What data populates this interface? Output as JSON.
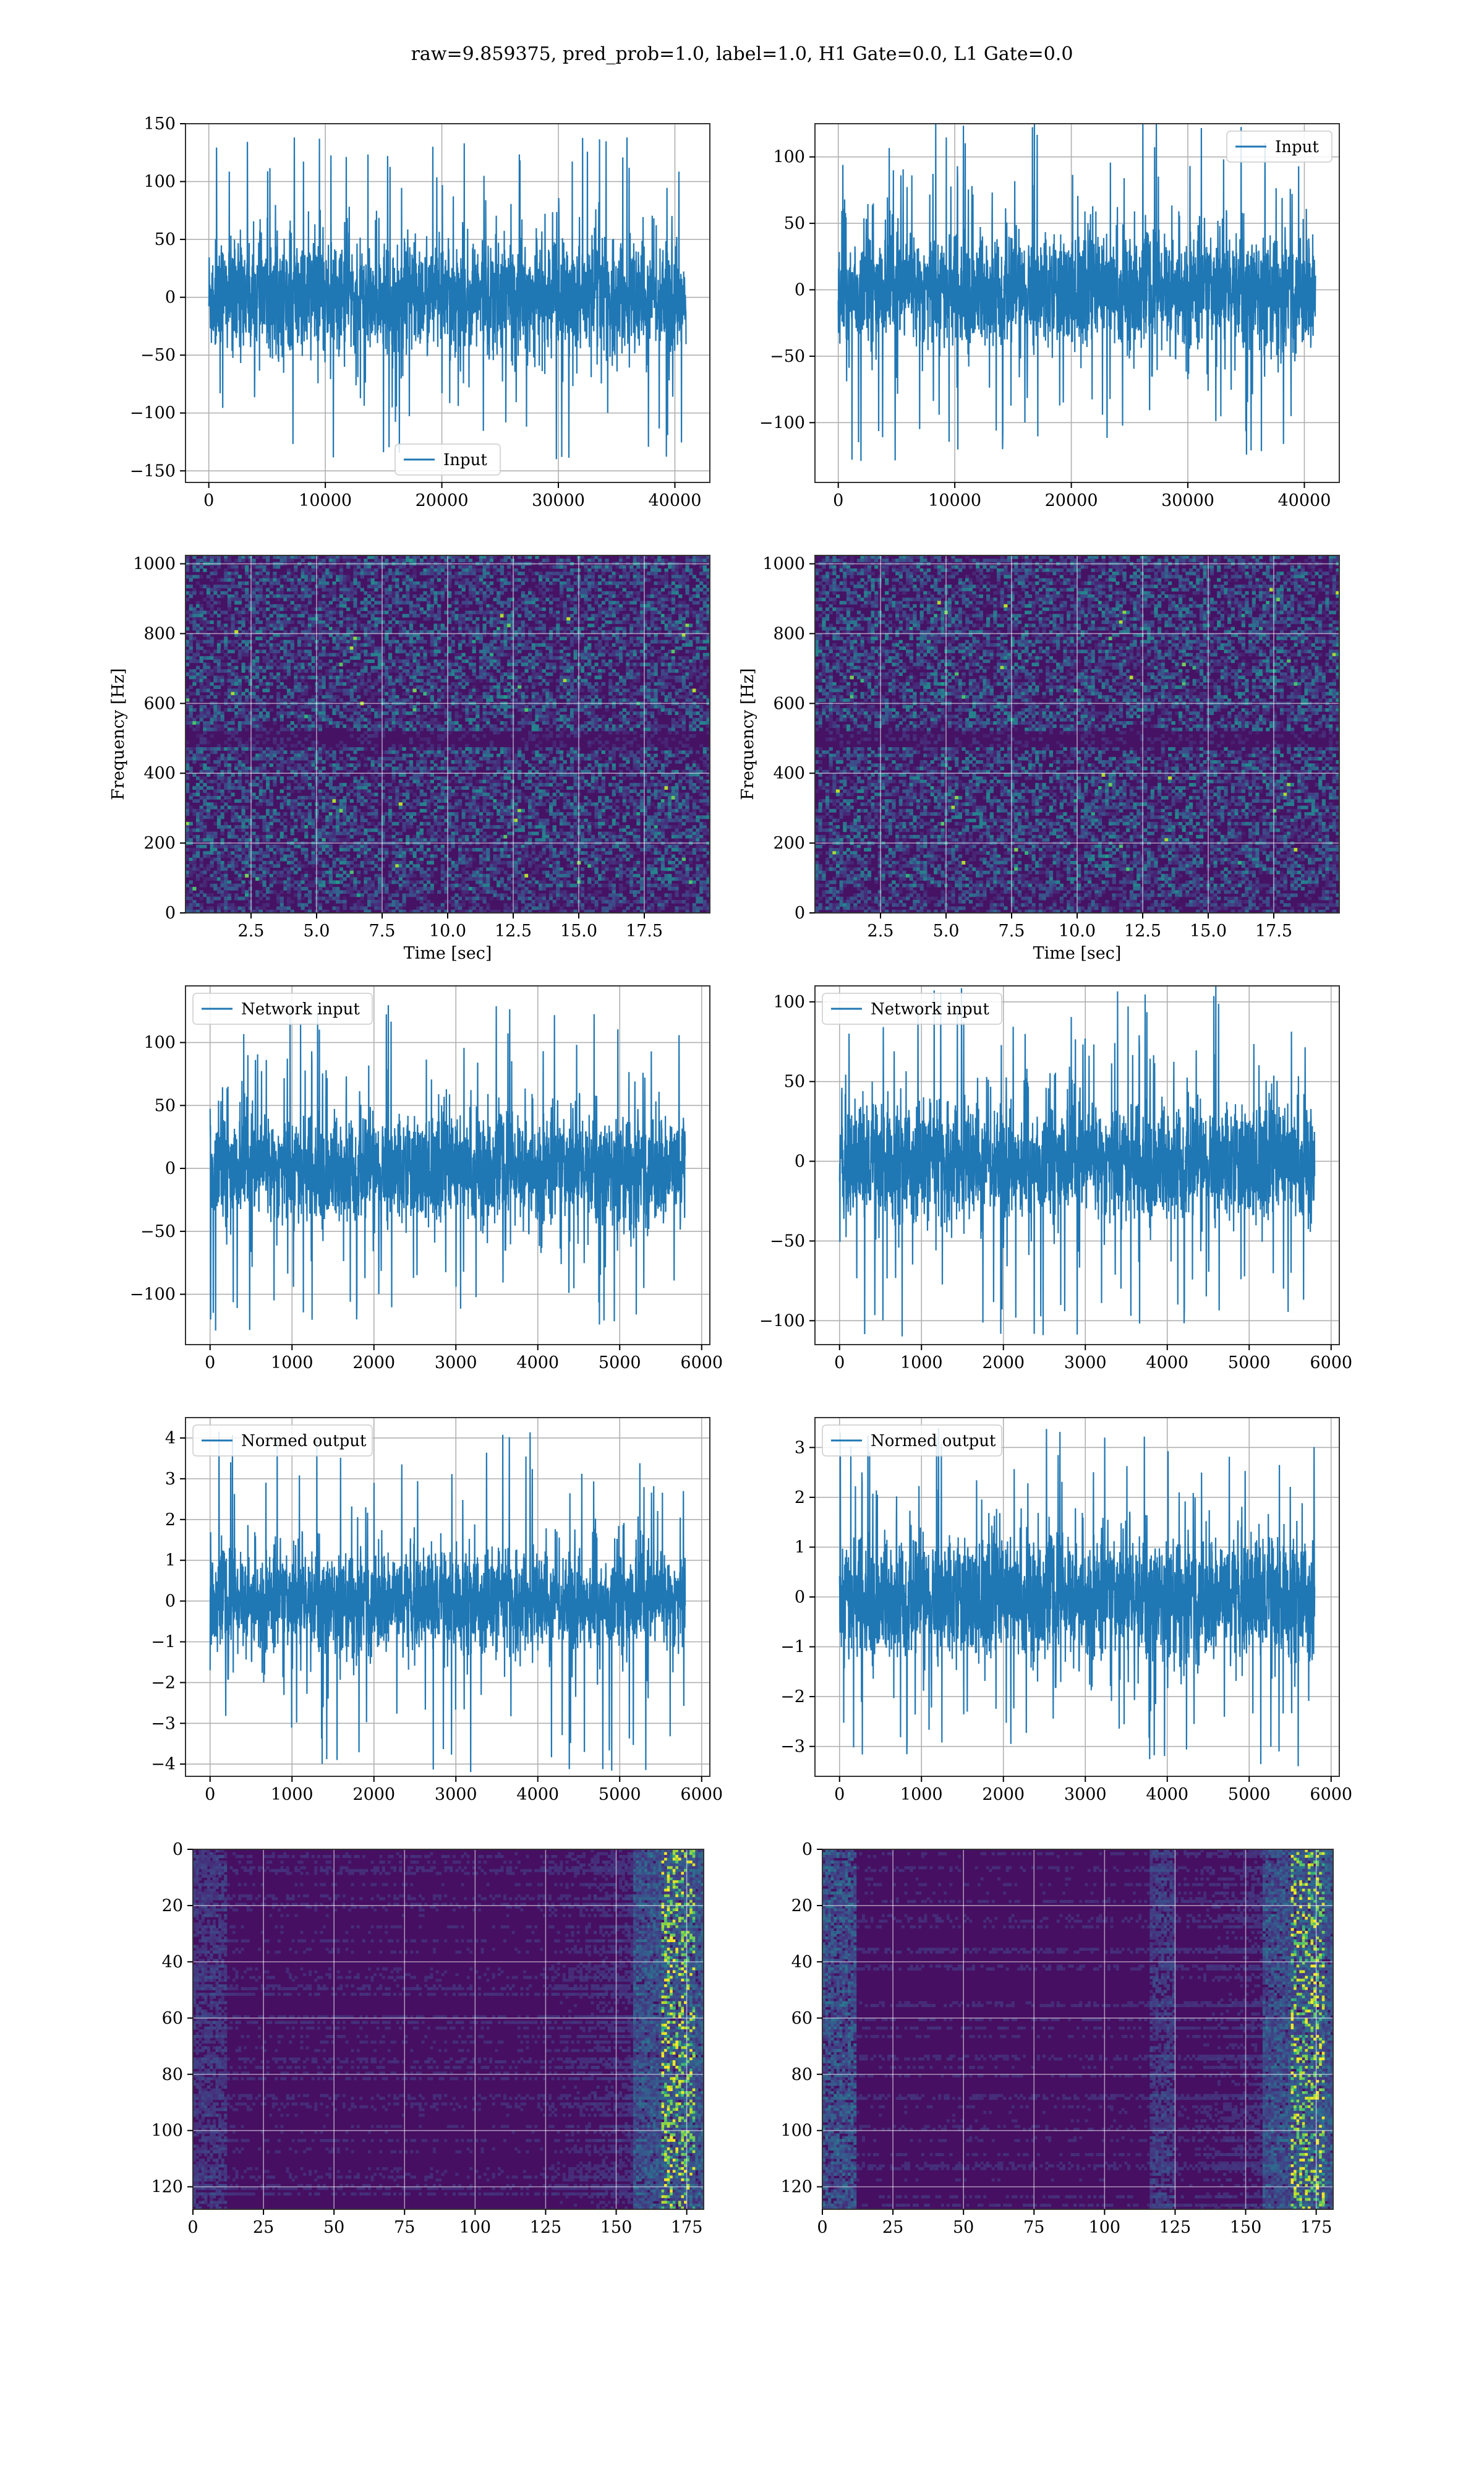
{
  "figure": {
    "suptitle": "raw=9.859375, pred_prob=1.0, label=1.0, H1 Gate=0.0, L1 Gate=0.0"
  },
  "chart_data": [
    {
      "id": "input-h1",
      "type": "line",
      "legend_position": "lower-center",
      "series": [
        {
          "name": "Input",
          "color": "#1f77b4",
          "n": 40960,
          "amplitude_typical": 40,
          "amplitude_peak": 140
        }
      ],
      "xlim": [
        -2000,
        43000
      ],
      "ylim": [
        -160,
        150
      ],
      "xticks": [
        0,
        10000,
        20000,
        30000,
        40000
      ],
      "yticks": [
        -150,
        -100,
        -50,
        0,
        50,
        100,
        150
      ],
      "xticklabels": [
        "0",
        "10000",
        "20000",
        "30000",
        "40000"
      ],
      "yticklabels": [
        "−150",
        "−100",
        "−50",
        "0",
        "50",
        "100",
        "150"
      ],
      "xlabel": "",
      "ylabel": "",
      "grid": true
    },
    {
      "id": "input-l1",
      "type": "line",
      "legend_position": "upper-right",
      "series": [
        {
          "name": "Input",
          "color": "#1f77b4",
          "n": 40960,
          "amplitude_typical": 35,
          "amplitude_peak": 130
        }
      ],
      "xlim": [
        -2000,
        43000
      ],
      "ylim": [
        -145,
        125
      ],
      "xticks": [
        0,
        10000,
        20000,
        30000,
        40000
      ],
      "yticks": [
        -100,
        -50,
        0,
        50,
        100
      ],
      "xticklabels": [
        "0",
        "10000",
        "20000",
        "30000",
        "40000"
      ],
      "yticklabels": [
        "−100",
        "−50",
        "0",
        "50",
        "100"
      ],
      "xlabel": "",
      "ylabel": "",
      "grid": true
    },
    {
      "id": "spectrogram-h1",
      "type": "heatmap",
      "colormap": "viridis",
      "xlim": [
        0,
        20
      ],
      "ylim": [
        0,
        1024
      ],
      "xticks": [
        2.5,
        5.0,
        7.5,
        10.0,
        12.5,
        15.0,
        17.5
      ],
      "yticks": [
        0,
        200,
        400,
        600,
        800,
        1000
      ],
      "xticklabels": [
        "2.5",
        "5.0",
        "7.5",
        "10.0",
        "12.5",
        "15.0",
        "17.5"
      ],
      "yticklabels": [
        "0",
        "200",
        "400",
        "600",
        "800",
        "1000"
      ],
      "xlabel": "Time [sec]",
      "ylabel": "Frequency [Hz]",
      "grid": true
    },
    {
      "id": "spectrogram-l1",
      "type": "heatmap",
      "colormap": "viridis",
      "xlim": [
        0,
        20
      ],
      "ylim": [
        0,
        1024
      ],
      "xticks": [
        2.5,
        5.0,
        7.5,
        10.0,
        12.5,
        15.0,
        17.5
      ],
      "yticks": [
        0,
        200,
        400,
        600,
        800,
        1000
      ],
      "xticklabels": [
        "2.5",
        "5.0",
        "7.5",
        "10.0",
        "12.5",
        "15.0",
        "17.5"
      ],
      "yticklabels": [
        "0",
        "200",
        "400",
        "600",
        "800",
        "1000"
      ],
      "xlabel": "Time [sec]",
      "ylabel": "Frequency [Hz]",
      "grid": true
    },
    {
      "id": "network-input-h1",
      "type": "line",
      "legend_position": "upper-left",
      "series": [
        {
          "name": "Network input",
          "color": "#1f77b4",
          "n": 5800,
          "amplitude_typical": 35,
          "amplitude_peak": 130
        }
      ],
      "xlim": [
        -300,
        6100
      ],
      "ylim": [
        -140,
        145
      ],
      "xticks": [
        0,
        1000,
        2000,
        3000,
        4000,
        5000,
        6000
      ],
      "yticks": [
        -100,
        -50,
        0,
        50,
        100
      ],
      "xticklabels": [
        "0",
        "1000",
        "2000",
        "3000",
        "4000",
        "5000",
        "6000"
      ],
      "yticklabels": [
        "−100",
        "−50",
        "0",
        "50",
        "100"
      ],
      "xlabel": "",
      "ylabel": "",
      "grid": true
    },
    {
      "id": "network-input-l1",
      "type": "line",
      "legend_position": "upper-left",
      "series": [
        {
          "name": "Network input",
          "color": "#1f77b4",
          "n": 5800,
          "amplitude_typical": 30,
          "amplitude_peak": 110
        }
      ],
      "xlim": [
        -300,
        6100
      ],
      "ylim": [
        -115,
        110
      ],
      "xticks": [
        0,
        1000,
        2000,
        3000,
        4000,
        5000,
        6000
      ],
      "yticks": [
        -100,
        -50,
        0,
        50,
        100
      ],
      "xticklabels": [
        "0",
        "1000",
        "2000",
        "3000",
        "4000",
        "5000",
        "6000"
      ],
      "yticklabels": [
        "−100",
        "−50",
        "0",
        "50",
        "100"
      ],
      "xlabel": "",
      "ylabel": "",
      "grid": true
    },
    {
      "id": "normed-output-h1",
      "type": "line",
      "legend_position": "upper-left",
      "series": [
        {
          "name": "Normed output",
          "color": "#1f77b4",
          "n": 5800,
          "amplitude_typical": 1.0,
          "amplitude_peak": 4.2
        }
      ],
      "xlim": [
        -300,
        6100
      ],
      "ylim": [
        -4.3,
        4.5
      ],
      "xticks": [
        0,
        1000,
        2000,
        3000,
        4000,
        5000,
        6000
      ],
      "yticks": [
        -4,
        -3,
        -2,
        -1,
        0,
        1,
        2,
        3,
        4
      ],
      "xticklabels": [
        "0",
        "1000",
        "2000",
        "3000",
        "4000",
        "5000",
        "6000"
      ],
      "yticklabels": [
        "−4",
        "−3",
        "−2",
        "−1",
        "0",
        "1",
        "2",
        "3",
        "4"
      ],
      "xlabel": "",
      "ylabel": "",
      "grid": true
    },
    {
      "id": "normed-output-l1",
      "type": "line",
      "legend_position": "upper-left",
      "series": [
        {
          "name": "Normed output",
          "color": "#1f77b4",
          "n": 5800,
          "amplitude_typical": 1.0,
          "amplitude_peak": 3.4
        }
      ],
      "xlim": [
        -300,
        6100
      ],
      "ylim": [
        -3.6,
        3.6
      ],
      "xticks": [
        0,
        1000,
        2000,
        3000,
        4000,
        5000,
        6000
      ],
      "yticks": [
        -3,
        -2,
        -1,
        0,
        1,
        2,
        3
      ],
      "xticklabels": [
        "0",
        "1000",
        "2000",
        "3000",
        "4000",
        "5000",
        "6000"
      ],
      "yticklabels": [
        "−3",
        "−2",
        "−1",
        "0",
        "1",
        "2",
        "3"
      ],
      "xlabel": "",
      "ylabel": "",
      "grid": true
    },
    {
      "id": "feature-map-h1",
      "type": "heatmap",
      "colormap": "viridis",
      "xlim": [
        0,
        181
      ],
      "ylim": [
        128,
        0
      ],
      "rows": 128,
      "cols": 181,
      "xticks": [
        0,
        25,
        50,
        75,
        100,
        125,
        150,
        175
      ],
      "yticks": [
        0,
        20,
        40,
        60,
        80,
        100,
        120
      ],
      "xticklabels": [
        "0",
        "25",
        "50",
        "75",
        "100",
        "125",
        "150",
        "175"
      ],
      "yticklabels": [
        "0",
        "20",
        "40",
        "60",
        "80",
        "100",
        "120"
      ],
      "xlabel": "",
      "ylabel": "",
      "grid": true
    },
    {
      "id": "feature-map-l1",
      "type": "heatmap",
      "colormap": "viridis",
      "xlim": [
        0,
        181
      ],
      "ylim": [
        128,
        0
      ],
      "rows": 128,
      "cols": 181,
      "xticks": [
        0,
        25,
        50,
        75,
        100,
        125,
        150,
        175
      ],
      "yticks": [
        0,
        20,
        40,
        60,
        80,
        100,
        120
      ],
      "xticklabels": [
        "0",
        "25",
        "50",
        "75",
        "100",
        "125",
        "150",
        "175"
      ],
      "yticklabels": [
        "0",
        "20",
        "40",
        "60",
        "80",
        "100",
        "120"
      ],
      "xlabel": "",
      "ylabel": "",
      "grid": true
    }
  ]
}
